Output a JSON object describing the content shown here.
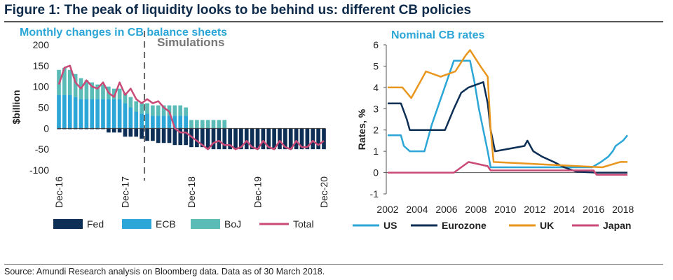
{
  "title": "Figure 1: The peak of liquidity looks to be behind us: different CB policies",
  "source": "Source: Amundi Research analysis on Bloomberg data. Data as of 30 March 2018.",
  "chart_data": [
    {
      "type": "bar",
      "title": "Monthly changes in CB balance sheets",
      "ylabel": "$billion",
      "ylim": [
        -100,
        200
      ],
      "yticks": [
        "200",
        "150",
        "100",
        "50",
        "0",
        "-50",
        "-100"
      ],
      "xticks": [
        "Dec-16",
        "Dec-17",
        "Dec-18",
        "Dec-19",
        "Dec-20"
      ],
      "annotation": "Simulations",
      "simulation_start_month": 16,
      "months": 49,
      "grid": false,
      "legend_position": "bottom",
      "series": [
        {
          "name": "Fed",
          "color": "#0d2f55",
          "values": [
            -2,
            -2,
            -2,
            -2,
            -2,
            -2,
            -2,
            -2,
            -2,
            -10,
            -10,
            -10,
            -20,
            -20,
            -20,
            -25,
            -30,
            -30,
            -35,
            -35,
            -35,
            -40,
            -40,
            -40,
            -45,
            -45,
            -45,
            -50,
            -50,
            -50,
            -50,
            -50,
            -50,
            -50,
            -50,
            -50,
            -50,
            -50,
            -50,
            -50,
            -50,
            -50,
            -50,
            -50,
            -50,
            -50,
            -50,
            -50,
            -50
          ]
        },
        {
          "name": "ECB",
          "color": "#2ba6d6",
          "values": [
            80,
            80,
            80,
            75,
            70,
            70,
            70,
            70,
            70,
            70,
            70,
            70,
            60,
            50,
            40,
            35,
            35,
            30,
            30,
            30,
            30,
            30,
            30,
            30,
            0,
            0,
            0,
            0,
            0,
            0,
            0,
            0,
            0,
            0,
            0,
            0,
            0,
            0,
            0,
            0,
            0,
            0,
            0,
            0,
            0,
            0,
            0,
            0,
            0
          ]
        },
        {
          "name": "BoJ",
          "color": "#5bbcb7",
          "values": [
            60,
            65,
            60,
            55,
            50,
            45,
            40,
            35,
            35,
            30,
            25,
            25,
            25,
            25,
            25,
            25,
            25,
            25,
            25,
            25,
            25,
            25,
            25,
            20,
            20,
            20,
            20,
            20,
            20,
            20,
            20,
            0,
            0,
            0,
            0,
            0,
            0,
            0,
            0,
            0,
            0,
            0,
            0,
            0,
            0,
            0,
            0,
            0,
            0
          ]
        },
        {
          "name": "Total",
          "color": "#c94a77",
          "type": "line",
          "values": [
            105,
            145,
            150,
            110,
            95,
            115,
            100,
            95,
            110,
            85,
            75,
            110,
            80,
            95,
            70,
            60,
            70,
            60,
            65,
            50,
            40,
            0,
            -10,
            -10,
            -20,
            -30,
            -40,
            -50,
            -35,
            -30,
            -40,
            -40,
            -50,
            -45,
            -30,
            -45,
            -50,
            -30,
            -45,
            -50,
            -30,
            -45,
            -50,
            -30,
            -45,
            -45,
            -30,
            -40,
            -30
          ]
        }
      ]
    },
    {
      "type": "line",
      "title": "Nominal CB rates",
      "ylabel": "Rates, %",
      "xlim": [
        2002,
        2018.3
      ],
      "ylim": [
        -1,
        6
      ],
      "yticks": [
        "6",
        "5",
        "4",
        "3",
        "2",
        "1",
        "0",
        "-1"
      ],
      "xticks": [
        "2002",
        "2004",
        "2006",
        "2008",
        "2010",
        "2012",
        "2014",
        "2016",
        "2018"
      ],
      "grid": false,
      "legend_position": "bottom",
      "series": [
        {
          "name": "US",
          "color": "#2ba6d6",
          "points": [
            [
              2002,
              1.75
            ],
            [
              2002.9,
              1.75
            ],
            [
              2003.1,
              1.25
            ],
            [
              2003.5,
              1.0
            ],
            [
              2004.5,
              1.0
            ],
            [
              2005,
              2.25
            ],
            [
              2005.5,
              3.25
            ],
            [
              2006,
              4.25
            ],
            [
              2006.5,
              5.25
            ],
            [
              2007.6,
              5.25
            ],
            [
              2007.9,
              4.25
            ],
            [
              2008.2,
              3.0
            ],
            [
              2008.5,
              2.0
            ],
            [
              2008.8,
              1.0
            ],
            [
              2009,
              0.25
            ],
            [
              2015.9,
              0.25
            ],
            [
              2016.5,
              0.5
            ],
            [
              2017,
              0.75
            ],
            [
              2017.3,
              1.0
            ],
            [
              2017.5,
              1.25
            ],
            [
              2018,
              1.5
            ],
            [
              2018.3,
              1.75
            ]
          ]
        },
        {
          "name": "Eurozone",
          "color": "#0d2f55",
          "points": [
            [
              2002,
              3.25
            ],
            [
              2002.9,
              3.25
            ],
            [
              2003.3,
              2.5
            ],
            [
              2003.5,
              2.0
            ],
            [
              2005.9,
              2.0
            ],
            [
              2006.2,
              2.5
            ],
            [
              2006.5,
              3.0
            ],
            [
              2007,
              3.75
            ],
            [
              2007.5,
              4.0
            ],
            [
              2008.5,
              4.25
            ],
            [
              2008.8,
              3.25
            ],
            [
              2009,
              2.0
            ],
            [
              2009.3,
              1.0
            ],
            [
              2011.3,
              1.25
            ],
            [
              2011.5,
              1.5
            ],
            [
              2011.9,
              1.0
            ],
            [
              2012.5,
              0.75
            ],
            [
              2013.3,
              0.5
            ],
            [
              2014,
              0.25
            ],
            [
              2014.8,
              0.05
            ],
            [
              2016.2,
              0.0
            ],
            [
              2018.3,
              0.0
            ]
          ]
        },
        {
          "name": "UK",
          "color": "#e8961e",
          "points": [
            [
              2002,
              4.0
            ],
            [
              2003,
              4.0
            ],
            [
              2003.3,
              3.75
            ],
            [
              2003.6,
              3.5
            ],
            [
              2004.2,
              4.25
            ],
            [
              2004.6,
              4.75
            ],
            [
              2005.6,
              4.5
            ],
            [
              2006.6,
              4.75
            ],
            [
              2007.3,
              5.5
            ],
            [
              2007.6,
              5.75
            ],
            [
              2008.3,
              5.0
            ],
            [
              2008.8,
              4.5
            ],
            [
              2009,
              2.0
            ],
            [
              2009.2,
              0.5
            ],
            [
              2016.6,
              0.25
            ],
            [
              2017.8,
              0.5
            ],
            [
              2018.3,
              0.5
            ]
          ]
        },
        {
          "name": "Japan",
          "color": "#c94a77",
          "points": [
            [
              2002,
              0.0
            ],
            [
              2006.5,
              0.0
            ],
            [
              2007,
              0.25
            ],
            [
              2007.5,
              0.5
            ],
            [
              2008.8,
              0.3
            ],
            [
              2009,
              0.1
            ],
            [
              2016,
              0.1
            ],
            [
              2016.2,
              -0.1
            ],
            [
              2018.3,
              -0.1
            ]
          ]
        }
      ]
    }
  ]
}
